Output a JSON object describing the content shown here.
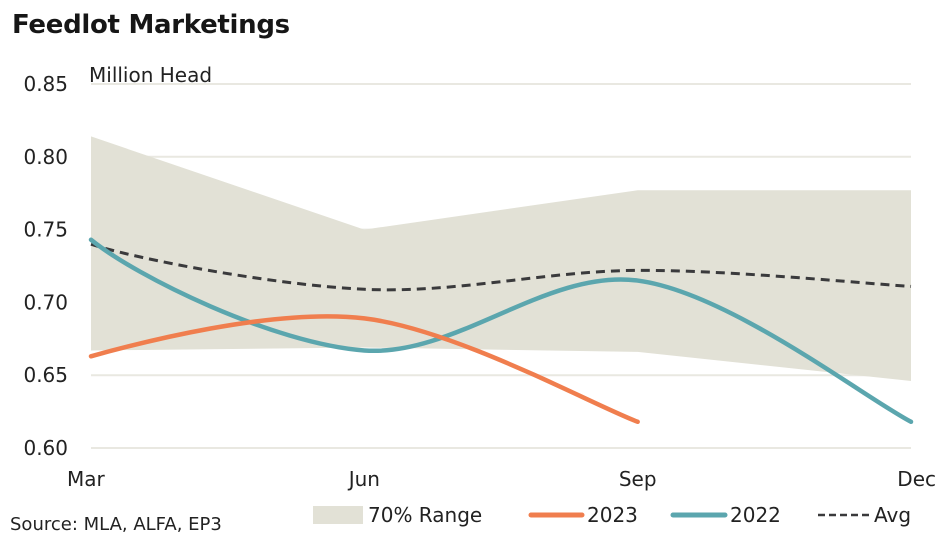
{
  "chart_data": {
    "type": "line",
    "title": "Feedlot Marketings",
    "ylabel": "Million Head",
    "xlabel": "",
    "x": [
      "Mar",
      "Jun",
      "Sep",
      "Dec"
    ],
    "ylim": [
      0.6,
      0.85
    ],
    "yticks": [
      "0.60",
      "0.65",
      "0.70",
      "0.75",
      "0.80",
      "0.85"
    ],
    "ytick_values": [
      0.6,
      0.65,
      0.7,
      0.75,
      0.8,
      0.85
    ],
    "grid": "horizontal",
    "legend_position": "bottom",
    "range": {
      "name": "70% Range",
      "upper": [
        0.814,
        0.75,
        0.777,
        0.777
      ],
      "lower": [
        0.667,
        0.669,
        0.666,
        0.646
      ],
      "color": "#e2e1d6"
    },
    "series": [
      {
        "name": "2023",
        "values": [
          0.663,
          0.689,
          0.618,
          null
        ],
        "color": "#f07e4e",
        "style": "solid"
      },
      {
        "name": "2022",
        "values": [
          0.743,
          0.667,
          0.715,
          0.618
        ],
        "color": "#5ba6ae",
        "style": "solid"
      },
      {
        "name": "Avg",
        "values": [
          0.74,
          0.709,
          0.722,
          0.711
        ],
        "color": "#3a3a3c",
        "style": "dashed"
      }
    ],
    "source": "Source: MLA, ALFA, EP3"
  }
}
